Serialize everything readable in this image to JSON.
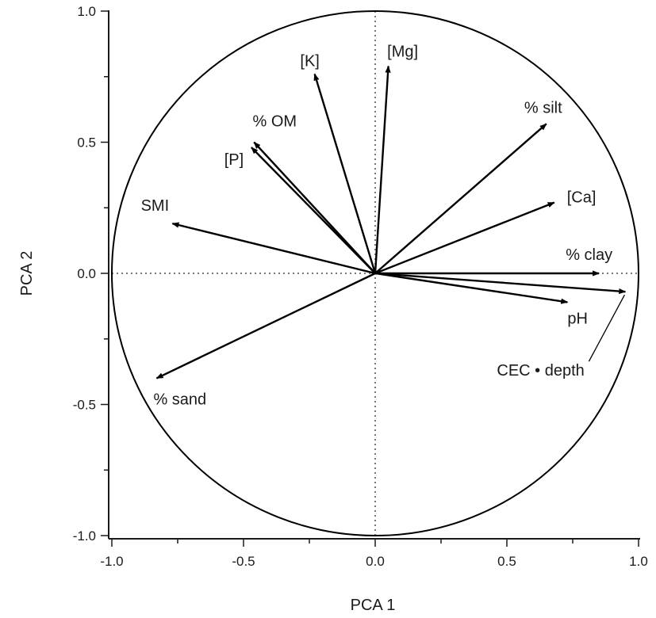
{
  "chart_data": {
    "type": "scatter",
    "subtype": "pca-correlation-circle",
    "title": "",
    "xlabel": "PCA 1",
    "ylabel": "PCA 2",
    "xlim": [
      -1.0,
      1.0
    ],
    "ylim": [
      -1.0,
      1.0
    ],
    "xticks": [
      -1.0,
      -0.5,
      0.0,
      0.5,
      1.0
    ],
    "xtick_labels": [
      "-1.0",
      "-0.5",
      "0.0",
      "0.5",
      "1.0"
    ],
    "yticks": [
      -1.0,
      -0.5,
      0.0,
      0.5,
      1.0
    ],
    "ytick_labels": [
      "-1.0",
      "-0.5",
      "0.0",
      "0.5",
      "1.0"
    ],
    "unit_circle": true,
    "zero_lines": "dotted",
    "vectors": [
      {
        "label": "[Mg]",
        "x": 0.05,
        "y": 0.79
      },
      {
        "label": "[K]",
        "x": -0.23,
        "y": 0.76
      },
      {
        "label": "% OM",
        "x": -0.46,
        "y": 0.5
      },
      {
        "label": "[P]",
        "x": -0.47,
        "y": 0.48
      },
      {
        "label": "% silt",
        "x": 0.65,
        "y": 0.57
      },
      {
        "label": "[Ca]",
        "x": 0.68,
        "y": 0.27
      },
      {
        "label": "SMI",
        "x": -0.77,
        "y": 0.19
      },
      {
        "label": "% clay",
        "x": 0.85,
        "y": 0.0
      },
      {
        "label": "pH",
        "x": 0.73,
        "y": -0.11
      },
      {
        "label": "CEC • depth",
        "x": 0.95,
        "y": -0.07
      },
      {
        "label": "% sand",
        "x": -0.83,
        "y": -0.4
      }
    ]
  }
}
